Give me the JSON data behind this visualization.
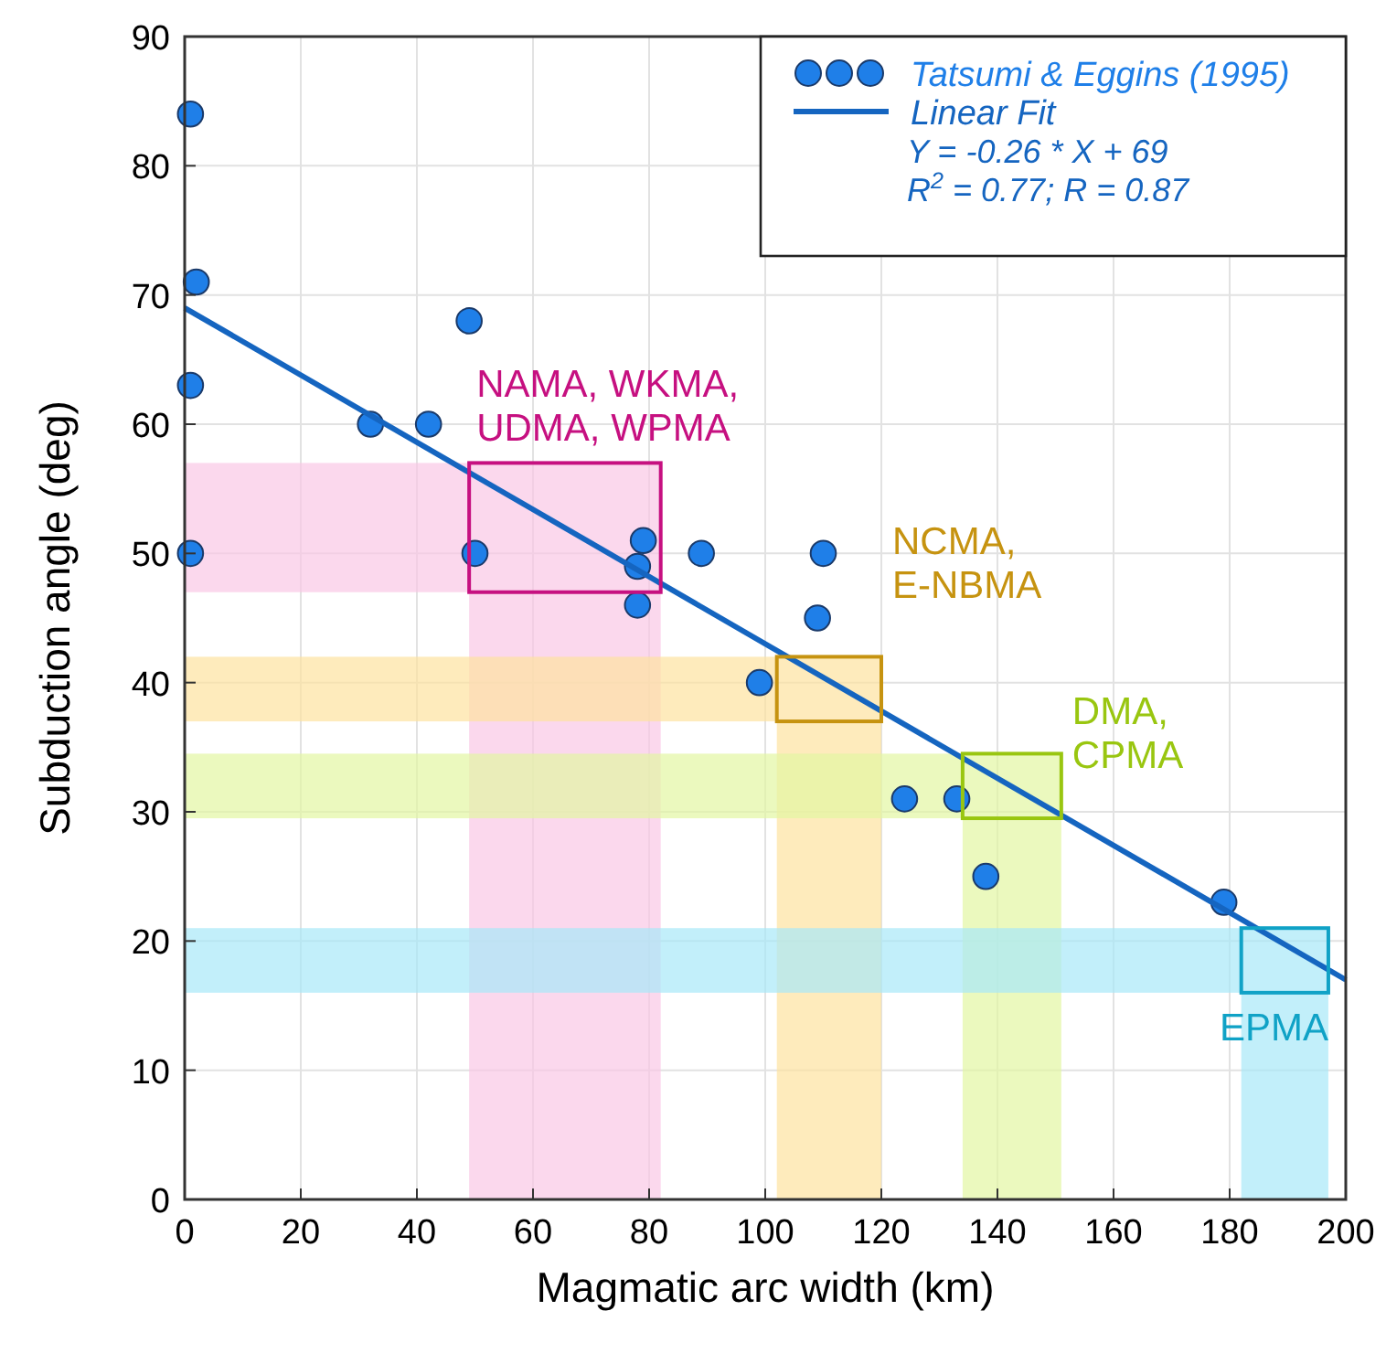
{
  "chart_data": {
    "type": "scatter",
    "xlabel": "Magmatic arc width (km)",
    "ylabel": "Subduction angle (deg)",
    "xlim": [
      0,
      200
    ],
    "xticks": [
      0,
      20,
      40,
      60,
      80,
      100,
      120,
      140,
      160,
      180,
      200
    ],
    "ylim": [
      0,
      90
    ],
    "yticks": [
      0,
      10,
      20,
      30,
      40,
      50,
      60,
      70,
      80,
      90
    ],
    "grid": true,
    "legend": "top right",
    "series": [
      {
        "name": "Tatsumi & Eggins (1995)",
        "color": "#1f7fe8",
        "marker": "circle",
        "x": [
          1,
          2,
          1,
          1,
          32,
          42,
          49,
          50,
          79,
          78,
          78,
          89,
          99,
          110,
          109,
          124,
          133,
          138,
          179
        ],
        "values": [
          84,
          71,
          63,
          50,
          60,
          60,
          68,
          50,
          51,
          49,
          46,
          50,
          40,
          50,
          45,
          31,
          31,
          25,
          23
        ]
      },
      {
        "name": "Linear Fit",
        "color": "#1565c0",
        "type": "line",
        "marker": "none",
        "line_style": "solid",
        "x": [
          0,
          200
        ],
        "values": [
          69,
          17
        ]
      }
    ],
    "bands": [
      {
        "axis": "y",
        "from": 47,
        "to": 57,
        "color": "#f9c8e6"
      },
      {
        "axis": "x",
        "from": 49,
        "to": 82,
        "color": "#f9c8e6"
      },
      {
        "axis": "y",
        "from": 37,
        "to": 42,
        "color": "#fde3a0"
      },
      {
        "axis": "x",
        "from": 102,
        "to": 120,
        "color": "#fde3a0"
      },
      {
        "axis": "y",
        "from": 29.5,
        "to": 34.5,
        "color": "#e2f7a2"
      },
      {
        "axis": "x",
        "from": 134,
        "to": 151,
        "color": "#e2f7a2"
      },
      {
        "axis": "y",
        "from": 16,
        "to": 21,
        "color": "#a8e8f8"
      },
      {
        "axis": "x",
        "from": 182,
        "to": 197,
        "color": "#a8e8f8"
      }
    ],
    "annotations": [
      "Y = -0.26 * X + 69",
      "R$^{2}$ = 0.77; R = 0.87",
      "NAMA, WKMA,\nUDMA, WPMA",
      "NCMA,\nE-NBMA",
      "DMA,\nCPMA",
      "EPMA"
    ]
  }
}
